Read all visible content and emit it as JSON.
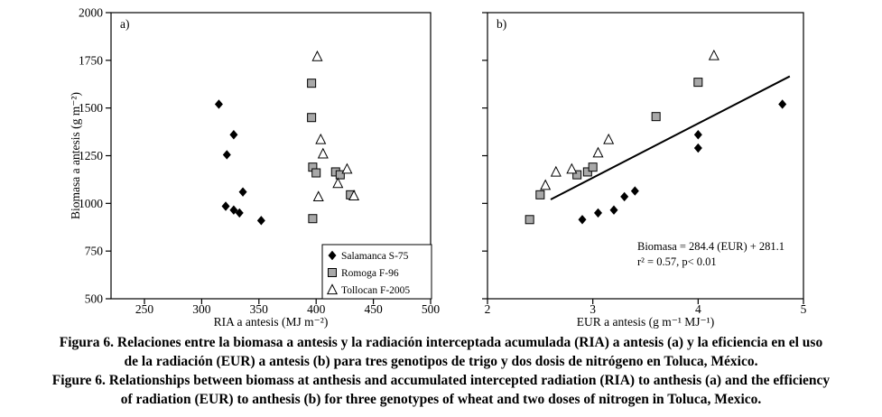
{
  "figure": {
    "title": "Figura 6 / Figure 6 scatter plots",
    "accent_color": "#000000",
    "marker_gray": "#a8a8a8"
  },
  "chart_data": [
    {
      "id": "a",
      "type": "scatter",
      "panel_label": "a)",
      "xlabel": "RIA a antesis (MJ m⁻²)",
      "ylabel": "Biomasa a antesis (g m⁻²)",
      "xlim": [
        250,
        500
      ],
      "xticks": [
        250,
        300,
        350,
        400,
        450,
        500
      ],
      "ylim": [
        500,
        2000
      ],
      "yticks": [
        500,
        750,
        1000,
        1250,
        1500,
        1750,
        2000
      ],
      "show_y_tick_labels": true,
      "grid": false,
      "legend": {
        "position": "bottom-right",
        "entries": [
          {
            "marker": "diamond",
            "label": "Salamanca S-75"
          },
          {
            "marker": "square",
            "label": "Romoga F-96"
          },
          {
            "marker": "triangle",
            "label": "Tollocan F-2005"
          }
        ]
      },
      "series": [
        {
          "name": "Salamanca S-75",
          "marker": "diamond",
          "points": [
            [
              315,
              1520
            ],
            [
              322,
              1255
            ],
            [
              328,
              1360
            ],
            [
              321,
              985
            ],
            [
              328,
              965
            ],
            [
              333,
              950
            ],
            [
              336,
              1060
            ],
            [
              352,
              910
            ]
          ]
        },
        {
          "name": "Romoga F-96",
          "marker": "square",
          "points": [
            [
              396,
              1630
            ],
            [
              396,
              1450
            ],
            [
              397,
              1190
            ],
            [
              400,
              1160
            ],
            [
              417,
              1165
            ],
            [
              421,
              1150
            ],
            [
              430,
              1045
            ],
            [
              397,
              920
            ]
          ]
        },
        {
          "name": "Tollocan F-2005",
          "marker": "triangle",
          "points": [
            [
              401,
              1770
            ],
            [
              404,
              1335
            ],
            [
              406,
              1260
            ],
            [
              402,
              1035
            ],
            [
              419,
              1105
            ],
            [
              427,
              1180
            ],
            [
              433,
              1040
            ]
          ]
        }
      ]
    },
    {
      "id": "b",
      "type": "scatter",
      "panel_label": "b)",
      "xlabel": "EUR a antesis (g m⁻¹ MJ⁻¹)",
      "ylabel": "",
      "xlim": [
        2,
        5
      ],
      "xticks": [
        2,
        3,
        4,
        5
      ],
      "ylim": [
        500,
        2000
      ],
      "yticks": [
        500,
        750,
        1000,
        1250,
        1500,
        1750,
        2000
      ],
      "show_y_tick_labels": false,
      "grid": false,
      "series": [
        {
          "name": "Salamanca S-75",
          "marker": "diamond",
          "points": [
            [
              2.9,
              915
            ],
            [
              3.05,
              950
            ],
            [
              3.2,
              965
            ],
            [
              3.3,
              1035
            ],
            [
              3.4,
              1065
            ],
            [
              4.0,
              1290
            ],
            [
              4.0,
              1360
            ],
            [
              4.8,
              1520
            ]
          ]
        },
        {
          "name": "Romoga F-96",
          "marker": "square",
          "points": [
            [
              2.4,
              915
            ],
            [
              2.5,
              1045
            ],
            [
              2.85,
              1150
            ],
            [
              2.95,
              1165
            ],
            [
              3.0,
              1190
            ],
            [
              3.6,
              1455
            ],
            [
              4.0,
              1635
            ]
          ]
        },
        {
          "name": "Tollocan F-2005",
          "marker": "triangle",
          "points": [
            [
              2.55,
              1095
            ],
            [
              2.65,
              1165
            ],
            [
              2.8,
              1180
            ],
            [
              3.05,
              1265
            ],
            [
              3.15,
              1335
            ],
            [
              4.15,
              1775
            ]
          ]
        }
      ],
      "trendline": {
        "slope": 284.4,
        "intercept": 281.1,
        "x_start": 2.6,
        "x_end": 4.87,
        "equation": "Biomasa = 284.4 (EUR) + 281.1",
        "r2": 0.57,
        "p": "< 0.01"
      },
      "annotation": [
        "Biomasa = 284.4 (EUR) + 281.1",
        "r² = 0.57, p< 0.01"
      ]
    }
  ],
  "caption": {
    "lines": [
      "Figura 6. Relaciones entre la biomasa a antesis y la radiación interceptada acumulada (RIA) a antesis (a) y la eficiencia en el uso",
      "de la radiación (EUR) a antesis (b) para tres genotipos de trigo y dos dosis de nitrógeno en Toluca, México.",
      "Figure 6. Relationships between biomass at anthesis and accumulated intercepted radiation (RIA) to anthesis (a) and the efficiency",
      "of radiation (EUR) to anthesis (b) for three genotypes of wheat and two doses of nitrogen in Toluca, Mexico."
    ]
  }
}
